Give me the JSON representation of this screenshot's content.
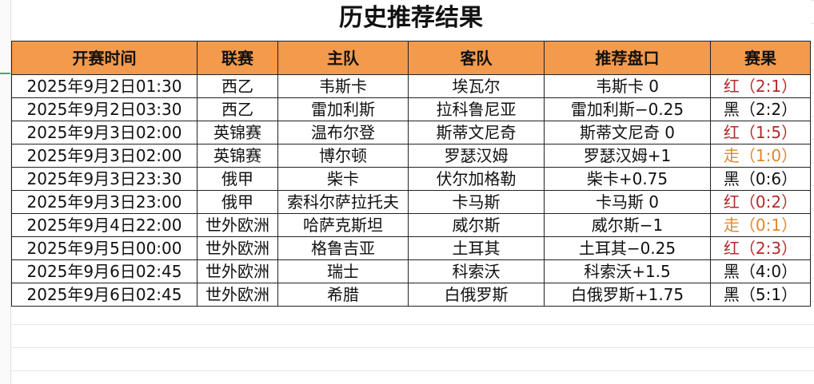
{
  "title": "历史推荐结果",
  "headers": [
    "开赛时间",
    "联赛",
    "主队",
    "客队",
    "推荐盘口",
    "赛果"
  ],
  "colors": {
    "header_bg": "#f39a4c",
    "red": "#b52a2a",
    "orange": "#e0872c",
    "black": "#111111"
  },
  "rows": [
    [
      "2025年9月2日01:30",
      "西乙",
      "韦斯卡",
      "埃瓦尔",
      "韦斯卡 0",
      "红（2:1）",
      "red"
    ],
    [
      "2025年9月2日03:30",
      "西乙",
      "雷加利斯",
      "拉科鲁尼亚",
      "雷加利斯−0.25",
      "黑（2:2）",
      "black"
    ],
    [
      "2025年9月3日02:00",
      "英锦赛",
      "温布尔登",
      "斯蒂文尼奇",
      "斯蒂文尼奇 0",
      "红（1:5）",
      "red"
    ],
    [
      "2025年9月3日02:00",
      "英锦赛",
      "博尔顿",
      "罗瑟汉姆",
      "罗瑟汉姆+1",
      "走（1:0）",
      "orange"
    ],
    [
      "2025年9月3日23:30",
      "俄甲",
      "柴卡",
      "伏尔加格勒",
      "柴卡+0.75",
      "黑（0:6）",
      "black"
    ],
    [
      "2025年9月3日23:00",
      "俄甲",
      "索科尔萨拉托夫",
      "卡马斯",
      "卡马斯 0",
      "红（0:2）",
      "red"
    ],
    [
      "2025年9月4日22:00",
      "世外欧洲",
      "哈萨克斯坦",
      "威尔斯",
      "威尔斯−1",
      "走（0:1）",
      "orange"
    ],
    [
      "2025年9月5日00:00",
      "世外欧洲",
      "格鲁吉亚",
      "土耳其",
      "土耳其−0.25",
      "红（2:3）",
      "red"
    ],
    [
      "2025年9月6日02:45",
      "世外欧洲",
      "瑞士",
      "科索沃",
      "科索沃+1.5",
      "黑（4:0）",
      "black"
    ],
    [
      "2025年9月6日02:45",
      "世外欧洲",
      "希腊",
      "白俄罗斯",
      "白俄罗斯+1.75",
      "黑（5:1）",
      "black"
    ]
  ]
}
